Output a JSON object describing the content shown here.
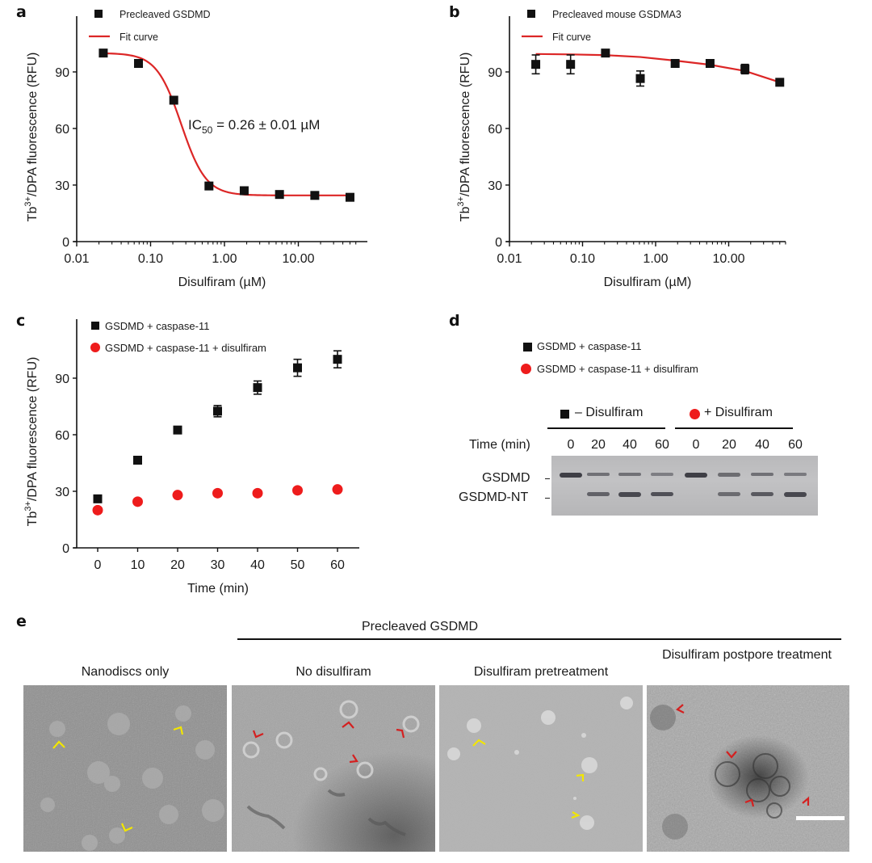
{
  "panels": {
    "a": "a",
    "b": "b",
    "c": "c",
    "d": "d",
    "e": "e"
  },
  "colors": {
    "fit_curve": "#dc2626",
    "marker_black": "#111111",
    "marker_red": "#ee1c1c",
    "arrow_yellow": "#f2e600",
    "arrow_red": "#d42020"
  },
  "chart_data": [
    {
      "id": "a",
      "type": "scatter",
      "xscale": "log",
      "title": "",
      "xlabel": "Disulfiram (µM)",
      "ylabel_main": "Tb",
      "ylabel_sup": "3+",
      "ylabel_rest": "/DPA fluorescence (RFU)",
      "xlim": [
        0.01,
        60
      ],
      "ylim": [
        0,
        115
      ],
      "xticks": [
        0.01,
        0.1,
        1,
        10
      ],
      "xtick_labels": [
        "0.01",
        "0.10",
        "1.00",
        "10.00"
      ],
      "yticks": [
        0,
        30,
        60,
        90
      ],
      "ytick_labels": [
        "0",
        "30",
        "60",
        "90"
      ],
      "legend": [
        {
          "label": "Precleaved GSDMD",
          "marker": "square",
          "color": "#111111"
        },
        {
          "label": "Fit curve",
          "marker": "line",
          "color": "#dc2626"
        }
      ],
      "legend_position": "top-left",
      "annotation": {
        "main": "IC",
        "sub": "50",
        "rest": " = 0.26 ± 0.01 µM"
      },
      "series": [
        {
          "name": "Precleaved GSDMD",
          "x": [
            0.0229,
            0.0686,
            0.206,
            0.617,
            1.85,
            5.56,
            16.7,
            50
          ],
          "y": [
            100,
            94.5,
            75,
            29.5,
            27,
            25,
            24.5,
            23.5
          ],
          "err": [
            1.5,
            2,
            1.5,
            1.5,
            1.5,
            1.5,
            1.5,
            1.5
          ]
        }
      ],
      "fit": {
        "model": "sigmoid",
        "top": 100,
        "bottom": 24.5,
        "ic50": 0.26,
        "hill": 2.6
      }
    },
    {
      "id": "b",
      "type": "scatter",
      "xscale": "log",
      "title": "",
      "xlabel": "Disulfiram (µM)",
      "ylabel_main": "Tb",
      "ylabel_sup": "3+",
      "ylabel_rest": "/DPA fluorescence (RFU)",
      "xlim": [
        0.01,
        60
      ],
      "ylim": [
        0,
        115
      ],
      "xticks": [
        0.01,
        0.1,
        1,
        10
      ],
      "xtick_labels": [
        "0.01",
        "0.10",
        "1.00",
        "10.00"
      ],
      "yticks": [
        0,
        30,
        60,
        90
      ],
      "ytick_labels": [
        "0",
        "30",
        "60",
        "90"
      ],
      "legend": [
        {
          "label": "Precleaved mouse GSDMA3",
          "marker": "square",
          "color": "#111111"
        },
        {
          "label": "Fit curve",
          "marker": "line",
          "color": "#dc2626"
        }
      ],
      "legend_position": "top-left",
      "series": [
        {
          "name": "Precleaved mouse GSDMA3",
          "x": [
            0.0229,
            0.0686,
            0.206,
            0.617,
            1.85,
            5.56,
            16.7,
            50
          ],
          "y": [
            94,
            94,
            100,
            86.5,
            94.5,
            94.5,
            91.5,
            84.5
          ],
          "err": [
            5,
            5,
            1.5,
            4,
            1.5,
            1.5,
            2.5,
            1.5
          ]
        }
      ],
      "fit": {
        "model": "points",
        "x": [
          0.0229,
          0.0686,
          0.206,
          0.617,
          1.85,
          5.56,
          16.7,
          50
        ],
        "y": [
          99.5,
          99.3,
          98.9,
          97.9,
          96.0,
          93.8,
          90.5,
          84.5
        ]
      }
    },
    {
      "id": "c",
      "type": "scatter",
      "xscale": "linear",
      "title": "",
      "xlabel": "Time (min)",
      "ylabel_main": "Tb",
      "ylabel_sup": "3+",
      "ylabel_rest": "/DPA fluorescence (RFU)",
      "xlim": [
        -5,
        65
      ],
      "ylim": [
        0,
        115
      ],
      "xticks": [
        0,
        10,
        20,
        30,
        40,
        50,
        60
      ],
      "xtick_labels": [
        "0",
        "10",
        "20",
        "30",
        "40",
        "50",
        "60"
      ],
      "yticks": [
        0,
        30,
        60,
        90
      ],
      "ytick_labels": [
        "0",
        "30",
        "60",
        "90"
      ],
      "legend": [
        {
          "label": "GSDMD + caspase-11",
          "marker": "square",
          "color": "#111111"
        },
        {
          "label": "GSDMD + caspase-11 + disulfiram",
          "marker": "circle",
          "color": "#ee1c1c"
        }
      ],
      "legend_position": "top-left",
      "series": [
        {
          "name": "GSDMD + caspase-11",
          "marker": "square",
          "color": "#111111",
          "x": [
            0,
            10,
            20,
            30,
            40,
            50,
            60
          ],
          "y": [
            26,
            46.5,
            62.5,
            72.5,
            85,
            95.5,
            100
          ],
          "err": [
            1.5,
            2,
            1.5,
            3,
            3.5,
            4.5,
            4.5
          ]
        },
        {
          "name": "GSDMD + caspase-11 + disulfiram",
          "marker": "circle",
          "color": "#ee1c1c",
          "x": [
            0,
            10,
            20,
            30,
            40,
            50,
            60
          ],
          "y": [
            20,
            24.5,
            28,
            29,
            29,
            30.5,
            31
          ],
          "err": [
            1.5,
            1.5,
            1.5,
            1.5,
            1.5,
            1.5,
            1.5
          ]
        }
      ]
    }
  ],
  "gel": {
    "legend": [
      {
        "label": "GSDMD + caspase-11",
        "marker": "square"
      },
      {
        "label": "GSDMD + caspase-11 + disulfiram",
        "marker": "circle"
      }
    ],
    "group_minus": "– Disulfiram",
    "group_plus": "+ Disulfiram",
    "time_label": "Time (min)",
    "lanes": [
      "0",
      "20",
      "40",
      "60",
      "0",
      "20",
      "40",
      "60"
    ],
    "band_labels": [
      "GSDMD",
      "GSDMD-NT"
    ],
    "band_intensity": {
      "GSDMD": [
        1.0,
        0.45,
        0.45,
        0.3,
        1.0,
        0.5,
        0.45,
        0.35
      ],
      "GSDMD-NT": [
        0,
        0.6,
        0.9,
        0.8,
        0,
        0.5,
        0.7,
        0.9
      ]
    }
  },
  "em": {
    "group_label": "Precleaved GSDMD",
    "titles": [
      "Nanodiscs only",
      "No disulfiram",
      "Disulfiram pretreatment",
      "Disulfiram postpore treatment"
    ]
  }
}
